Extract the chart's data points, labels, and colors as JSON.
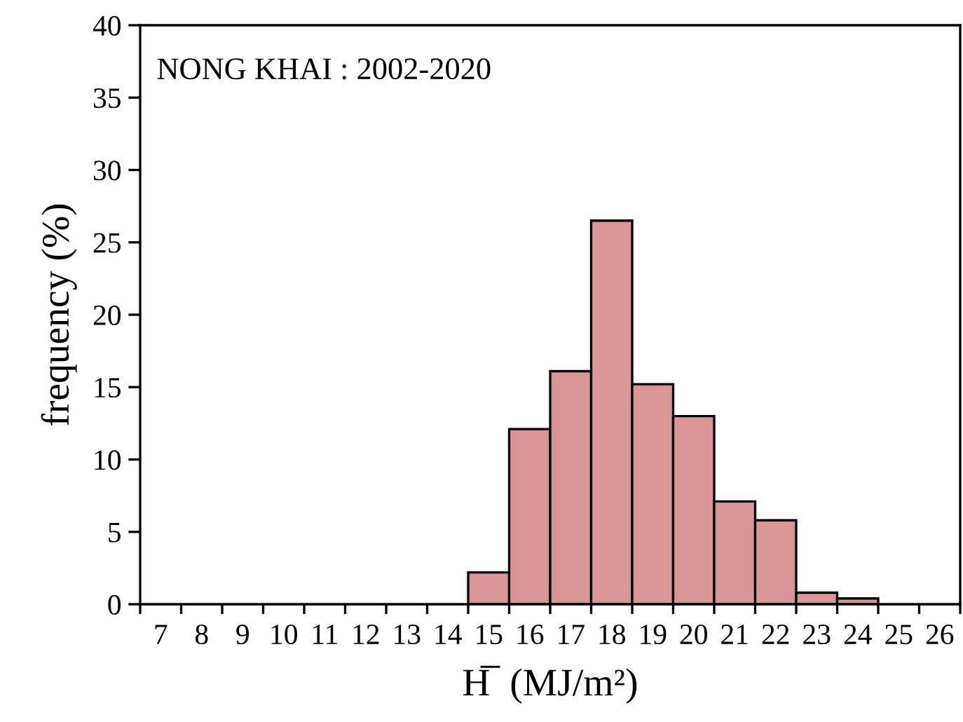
{
  "chart_data": {
    "type": "histogram",
    "xlabel": "H̅  (MJ/m²)",
    "ylabel": "frequency (%)",
    "annotations": [
      "NONG KHAI : 2002-2020"
    ],
    "bins": [
      14.5,
      15.5,
      16.5,
      17.5,
      18.5,
      19.5,
      20.5,
      21.5,
      22.5,
      23.5,
      24.5
    ],
    "values": [
      2.2,
      12.1,
      16.1,
      26.5,
      15.2,
      13.0,
      7.1,
      5.8,
      0.8,
      0.4
    ],
    "color": "#d99694",
    "xlim": [
      6.5,
      26.5
    ],
    "xticks": [
      {
        "value": 6.5,
        "label": null
      },
      7,
      {
        "value": 7.5,
        "label": null
      },
      8,
      {
        "value": 8.5,
        "label": null
      },
      9,
      {
        "value": 9.5,
        "label": null
      },
      10,
      {
        "value": 10.5,
        "label": null
      },
      11,
      {
        "value": 11.5,
        "label": null
      },
      12,
      {
        "value": 12.5,
        "label": null
      },
      13,
      {
        "value": 13.5,
        "label": null
      },
      14,
      {
        "value": 14.5,
        "label": null
      },
      15,
      {
        "value": 15.5,
        "label": null
      },
      16,
      {
        "value": 16.5,
        "label": null
      },
      17,
      {
        "value": 17.5,
        "label": null
      },
      18,
      {
        "value": 18.5,
        "label": null
      },
      19,
      {
        "value": 19.5,
        "label": null
      },
      20,
      {
        "value": 20.5,
        "label": null
      },
      21,
      {
        "value": 21.5,
        "label": null
      },
      22,
      {
        "value": 22.5,
        "label": null
      },
      23,
      {
        "value": 23.5,
        "label": null
      },
      24,
      {
        "value": 24.5,
        "label": null
      },
      25,
      {
        "value": 25.5,
        "label": null
      },
      26,
      {
        "value": 26.5,
        "label": null
      }
    ],
    "ylim": [
      0,
      40
    ],
    "yticks": [
      0,
      5,
      10,
      15,
      20,
      25,
      30,
      35,
      40
    ],
    "grid": false
  }
}
